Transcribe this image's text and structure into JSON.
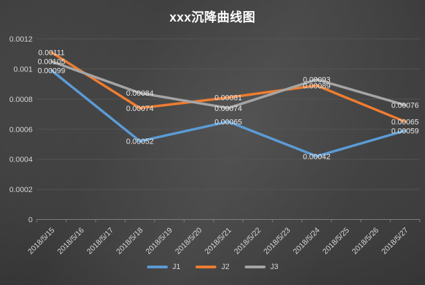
{
  "chart_data": {
    "type": "line",
    "title": "xxx沉降曲线图",
    "categories": [
      "2018/5/15",
      "2018/5/16",
      "2018/5/17",
      "2018/5/18",
      "2018/5/19",
      "2018/5/20",
      "2018/5/21",
      "2018/5/22",
      "2018/5/23",
      "2018/5/24",
      "2018/5/25",
      "2018/5/26",
      "2018/5/27"
    ],
    "point_category_indices": [
      0,
      3,
      6,
      9,
      12
    ],
    "series": [
      {
        "name": "J1",
        "color": "#5B9BD5",
        "values": [
          0.00099,
          0.00052,
          0.00065,
          0.00042,
          0.00059
        ]
      },
      {
        "name": "J2",
        "color": "#ED7D31",
        "values": [
          0.00111,
          0.00074,
          0.00081,
          0.00089,
          0.00065
        ]
      },
      {
        "name": "J3",
        "color": "#A5A5A5",
        "values": [
          0.00105,
          0.00084,
          0.00074,
          0.00093,
          0.00076
        ]
      }
    ],
    "y_axis": {
      "min": 0,
      "max": 0.0012,
      "step": 0.0002,
      "tick_labels": [
        "0",
        "0.0002",
        "0.0004",
        "0.0006",
        "0.0008",
        "0.001",
        "0.0012"
      ]
    },
    "data_labels_shown": true,
    "grid": true,
    "legend_position": "bottom",
    "colors": {
      "background_center": "#4a4a4a",
      "background_corner": "#242424",
      "gridline": "#555555",
      "axis_line": "#7f7f7f",
      "tick_text": "#d6d6d6",
      "data_label_text": "#eaeaea",
      "title_text": "#ffffff"
    }
  }
}
